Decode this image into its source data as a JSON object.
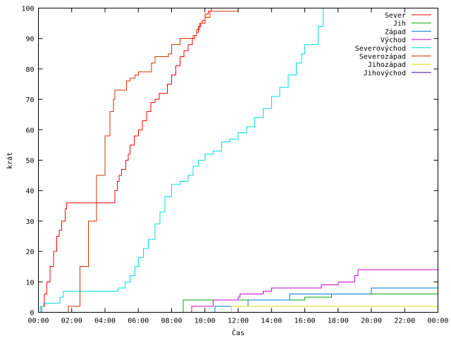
{
  "chart_data": {
    "type": "line",
    "title": "",
    "xlabel": "Čas",
    "ylabel": "krát",
    "xlim": [
      0,
      24
    ],
    "ylim": [
      0,
      100
    ],
    "x_unit": "hours",
    "x_ticks": [
      "00:00",
      "02:00",
      "04:00",
      "06:00",
      "08:00",
      "10:00",
      "12:00",
      "14:00",
      "16:00",
      "18:00",
      "20:00",
      "22:00",
      "00:00"
    ],
    "y_ticks": [
      "0",
      "10",
      "20",
      "30",
      "40",
      "50",
      "60",
      "70",
      "80",
      "90",
      "100"
    ],
    "grid": false,
    "legend_position": "top-right",
    "series": [
      {
        "name": "Sever",
        "color": "#ff0000",
        "x": [
          0.0,
          0.2,
          0.35,
          0.5,
          0.7,
          0.9,
          1.1,
          1.25,
          1.4,
          1.6,
          1.7,
          1.75,
          2.5,
          3.5,
          4.5,
          4.6,
          4.75,
          4.85,
          5.0,
          5.25,
          5.4,
          5.5,
          5.75,
          6.0,
          6.25,
          6.5,
          6.75,
          7.0,
          7.25,
          7.5,
          7.75,
          8.0,
          8.25,
          8.5,
          8.75,
          9.0,
          9.25,
          9.4,
          9.5,
          9.6,
          9.75,
          9.85,
          10.0,
          10.2,
          10.4,
          10.5
        ],
        "y": [
          0,
          2,
          6,
          10,
          15,
          20,
          25,
          27,
          30,
          34,
          36,
          36,
          36,
          36,
          36,
          40,
          43,
          45,
          47,
          50,
          52,
          55,
          58,
          60,
          63,
          66,
          69,
          70,
          72,
          72,
          75,
          78,
          81,
          84,
          86,
          88,
          90,
          91,
          92,
          94,
          95,
          96,
          98,
          99,
          100,
          100
        ]
      },
      {
        "name": "Jih",
        "color": "#00aa00",
        "x": [
          0,
          8.6,
          8.7,
          10.0,
          12.0,
          14.0,
          16.0,
          17.5,
          17.6,
          18.0,
          20.0,
          22.0,
          24.0
        ],
        "y": [
          0,
          0,
          4,
          4,
          4,
          4,
          5,
          5,
          6,
          6,
          6,
          6,
          6
        ]
      },
      {
        "name": "Západ",
        "color": "#0077cc",
        "x": [
          0,
          10.5,
          10.6,
          12.5,
          12.6,
          15.0,
          15.1,
          18.0,
          20.0,
          22.0,
          24.0
        ],
        "y": [
          0,
          0,
          2,
          2,
          4,
          4,
          6,
          6,
          8,
          8,
          8
        ]
      },
      {
        "name": "Východ",
        "color": "#cc00cc",
        "x": [
          0,
          9.1,
          9.2,
          10.5,
          11.5,
          12.0,
          12.1,
          13.5,
          14.0,
          17.0,
          18.0,
          19.0,
          19.2,
          22.0,
          24.0
        ],
        "y": [
          0,
          0,
          2,
          4,
          4,
          5,
          6,
          7,
          8,
          9,
          10,
          12,
          14,
          14,
          14
        ]
      },
      {
        "name": "Severovýchod",
        "color": "#00dddd",
        "x": [
          0,
          0.1,
          0.3,
          1.0,
          1.3,
          1.5,
          2.0,
          3.0,
          4.0,
          4.8,
          5.2,
          5.5,
          5.8,
          6.0,
          6.3,
          6.6,
          7.0,
          7.3,
          7.6,
          8.0,
          8.5,
          9.0,
          9.3,
          9.6,
          10.0,
          10.5,
          11.0,
          11.5,
          12.0,
          12.5,
          13.0,
          13.5,
          14.0,
          14.5,
          15.0,
          15.5,
          15.8,
          16.0,
          16.5,
          16.8,
          17.1
        ],
        "y": [
          0,
          2,
          3,
          3,
          5,
          7,
          7,
          7,
          7,
          8,
          10,
          12,
          15,
          18,
          21,
          24,
          29,
          33,
          38,
          42,
          43,
          45,
          48,
          50,
          52,
          53,
          56,
          57,
          59,
          61,
          64,
          67,
          71,
          74,
          78,
          82,
          85,
          88,
          88,
          94,
          100
        ]
      },
      {
        "name": "Severozápad",
        "color": "#cc3300",
        "x": [
          0,
          1.7,
          1.8,
          2.5,
          3.0,
          3.5,
          4.0,
          4.3,
          4.5,
          4.6,
          5.0,
          5.3,
          5.5,
          5.8,
          6.0,
          6.4,
          6.8,
          7.0,
          7.5,
          7.8,
          8.0,
          8.5,
          9.0,
          9.3,
          9.5,
          9.7,
          10.0,
          10.3,
          10.5,
          11.0,
          12.0
        ],
        "y": [
          0,
          0,
          2,
          15,
          30,
          45,
          58,
          66,
          70,
          73,
          73,
          76,
          77,
          78,
          79,
          79,
          82,
          84,
          84,
          85,
          88,
          90,
          90,
          91,
          93,
          95,
          97,
          99,
          99,
          99,
          99
        ]
      },
      {
        "name": "Jihozápad",
        "color": "#dddd00",
        "x": [
          0,
          11.5,
          11.6,
          14.0,
          16.0,
          18.0,
          20.0,
          22.0,
          24.0
        ],
        "y": [
          0,
          0,
          2,
          2,
          2,
          2,
          2,
          2,
          2
        ]
      },
      {
        "name": "Jihovýchod",
        "color": "#3300aa",
        "x": [
          0,
          24.0
        ],
        "y": [
          0,
          0
        ]
      }
    ]
  }
}
